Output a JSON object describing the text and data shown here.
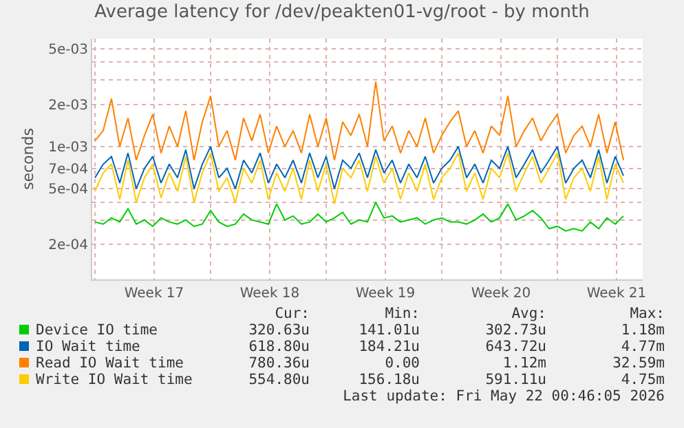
{
  "chart_data": {
    "type": "line",
    "title": "Average latency for /dev/peakten01-vg/root - by month",
    "ylabel": "seconds",
    "x": [
      "2026-04-20T00:00",
      "2026-04-20T12:00",
      "2026-04-21T00:00",
      "2026-04-21T12:00",
      "2026-04-22T00:00",
      "2026-04-22T12:00",
      "2026-04-23T00:00",
      "2026-04-23T12:00",
      "2026-04-24T00:00",
      "2026-04-24T12:00",
      "2026-04-25T00:00",
      "2026-04-25T12:00",
      "2026-04-26T00:00",
      "2026-04-26T12:00",
      "2026-04-27T00:00",
      "2026-04-27T12:00",
      "2026-04-28T00:00",
      "2026-04-28T12:00",
      "2026-04-29T00:00",
      "2026-04-29T12:00",
      "2026-04-30T00:00",
      "2026-04-30T12:00",
      "2026-05-01T00:00",
      "2026-05-01T12:00",
      "2026-05-02T00:00",
      "2026-05-02T12:00",
      "2026-05-03T00:00",
      "2026-05-03T12:00",
      "2026-05-04T00:00",
      "2026-05-04T12:00",
      "2026-05-05T00:00",
      "2026-05-05T12:00",
      "2026-05-06T00:00",
      "2026-05-06T12:00",
      "2026-05-07T00:00",
      "2026-05-07T12:00",
      "2026-05-08T00:00",
      "2026-05-08T12:00",
      "2026-05-09T00:00",
      "2026-05-09T12:00",
      "2026-05-10T00:00",
      "2026-05-10T12:00",
      "2026-05-11T00:00",
      "2026-05-11T12:00",
      "2026-05-12T00:00",
      "2026-05-12T12:00",
      "2026-05-13T00:00",
      "2026-05-13T12:00",
      "2026-05-14T00:00",
      "2026-05-14T12:00",
      "2026-05-15T00:00",
      "2026-05-15T12:00",
      "2026-05-16T00:00",
      "2026-05-16T12:00",
      "2026-05-17T00:00",
      "2026-05-17T12:00",
      "2026-05-18T00:00",
      "2026-05-18T12:00",
      "2026-05-19T00:00",
      "2026-05-19T12:00",
      "2026-05-20T00:00",
      "2026-05-20T12:00",
      "2026-05-21T00:00",
      "2026-05-21T12:00",
      "2026-05-22T00:00"
    ],
    "series": [
      {
        "name": "Device IO time",
        "color": "#00cc00",
        "values": [
          0.00029,
          0.00028,
          0.00031,
          0.00029,
          0.00036,
          0.00028,
          0.0003,
          0.00027,
          0.00031,
          0.00029,
          0.00028,
          0.0003,
          0.00027,
          0.00028,
          0.00035,
          0.00029,
          0.00027,
          0.00028,
          0.00033,
          0.0003,
          0.00029,
          0.00028,
          0.00039,
          0.0003,
          0.00032,
          0.00028,
          0.00029,
          0.00033,
          0.00029,
          0.00031,
          0.00034,
          0.00028,
          0.0003,
          0.00029,
          0.0004,
          0.00031,
          0.00032,
          0.00029,
          0.0003,
          0.00031,
          0.00028,
          0.0003,
          0.00031,
          0.00029,
          0.00029,
          0.00028,
          0.0003,
          0.00033,
          0.00029,
          0.00031,
          0.00039,
          0.0003,
          0.00032,
          0.00035,
          0.00031,
          0.00026,
          0.00027,
          0.00025,
          0.00026,
          0.00025,
          0.00029,
          0.00026,
          0.00031,
          0.00028,
          0.00032
        ]
      },
      {
        "name": "IO Wait time",
        "color": "#0066b3",
        "values": [
          0.0006,
          0.00075,
          0.00085,
          0.00055,
          0.0009,
          0.0005,
          0.0007,
          0.00085,
          0.00055,
          0.00075,
          0.0006,
          0.00095,
          0.0005,
          0.00075,
          0.001,
          0.0006,
          0.0007,
          0.0005,
          0.0008,
          0.00065,
          0.0009,
          0.00055,
          0.00075,
          0.0006,
          0.0008,
          0.00055,
          0.0009,
          0.0006,
          0.00085,
          0.0005,
          0.0008,
          0.0007,
          0.0009,
          0.0006,
          0.00095,
          0.00065,
          0.0008,
          0.00055,
          0.00075,
          0.0006,
          0.00085,
          0.00055,
          0.0007,
          0.0008,
          0.001,
          0.0006,
          0.00075,
          0.00055,
          0.0008,
          0.0007,
          0.001,
          0.0006,
          0.00075,
          0.00095,
          0.00065,
          0.0008,
          0.001,
          0.00055,
          0.0007,
          0.0008,
          0.0006,
          0.00095,
          0.00055,
          0.00085,
          0.00062
        ]
      },
      {
        "name": "Read IO Wait time",
        "color": "#ff8000",
        "values": [
          0.0011,
          0.0013,
          0.0022,
          0.001,
          0.0016,
          0.0008,
          0.0012,
          0.0017,
          0.0009,
          0.0014,
          0.001,
          0.0018,
          0.0008,
          0.0015,
          0.0023,
          0.001,
          0.0013,
          0.0008,
          0.0016,
          0.0011,
          0.0017,
          0.0009,
          0.0014,
          0.001,
          0.0013,
          0.0009,
          0.0017,
          0.001,
          0.0016,
          0.0008,
          0.0015,
          0.0012,
          0.0017,
          0.001,
          0.0029,
          0.0011,
          0.0014,
          0.0009,
          0.0013,
          0.001,
          0.0016,
          0.0009,
          0.0012,
          0.0015,
          0.0018,
          0.001,
          0.0013,
          0.0009,
          0.0014,
          0.0012,
          0.0023,
          0.001,
          0.0013,
          0.0016,
          0.0011,
          0.0014,
          0.0017,
          0.0009,
          0.0012,
          0.0014,
          0.001,
          0.0017,
          0.0009,
          0.0015,
          0.0008
        ]
      },
      {
        "name": "Write IO Wait time",
        "color": "#ffcc00",
        "values": [
          0.00048,
          0.00065,
          0.00075,
          0.00042,
          0.0008,
          0.0004,
          0.0006,
          0.00075,
          0.00043,
          0.00065,
          0.00048,
          0.00085,
          0.0004,
          0.00065,
          0.0009,
          0.00048,
          0.0006,
          0.0004,
          0.0007,
          0.00055,
          0.0008,
          0.00042,
          0.00065,
          0.00048,
          0.0007,
          0.00042,
          0.0008,
          0.00048,
          0.00075,
          0.00039,
          0.0007,
          0.0006,
          0.0008,
          0.00048,
          0.00085,
          0.00055,
          0.0007,
          0.00042,
          0.00065,
          0.00048,
          0.00075,
          0.00042,
          0.0006,
          0.0007,
          0.0009,
          0.00048,
          0.00065,
          0.00042,
          0.0007,
          0.0006,
          0.0009,
          0.00048,
          0.00065,
          0.00085,
          0.00055,
          0.0007,
          0.0009,
          0.00042,
          0.0006,
          0.0007,
          0.00048,
          0.00085,
          0.00042,
          0.00075,
          0.00055
        ]
      }
    ],
    "log": "y",
    "grid": true,
    "legend": "bottom",
    "line_style": "solid",
    "marker": "none",
    "xlim": [
      "2026-04-19T20:00",
      "2026-05-23T04:00"
    ],
    "xticks": [
      {
        "value": "2026-04-20",
        "label": null
      },
      {
        "value": "2026-04-23T14:00",
        "label": "Week 17"
      },
      {
        "value": "2026-04-27",
        "label": null
      },
      {
        "value": "2026-04-30T14:00",
        "label": "Week 18"
      },
      {
        "value": "2026-05-04",
        "label": null
      },
      {
        "value": "2026-05-07T14:00",
        "label": "Week 19"
      },
      {
        "value": "2026-05-11",
        "label": null
      },
      {
        "value": "2026-05-14T14:00",
        "label": "Week 20"
      },
      {
        "value": "2026-05-18",
        "label": null
      },
      {
        "value": "2026-05-21T14:00",
        "label": "Week 21"
      }
    ],
    "ylim": [
      0.000113,
      0.0059
    ],
    "yticks": [
      {
        "value": 0.0002,
        "label": "2e-04"
      },
      {
        "value": 0.0003,
        "label": null
      },
      {
        "value": 0.0004,
        "label": null
      },
      {
        "value": 0.0005,
        "label": "5e-04"
      },
      {
        "value": 0.0007,
        "label": "7e-04"
      },
      {
        "value": 0.001,
        "label": "1e-03"
      },
      {
        "value": 0.002,
        "label": "2e-03"
      },
      {
        "value": 0.003,
        "label": null
      },
      {
        "value": 0.004,
        "label": null
      },
      {
        "value": 0.005,
        "label": "5e-03"
      }
    ],
    "annotations": [
      "Cur:",
      "Min:",
      "Avg:",
      "Max:",
      "320.63u",
      "141.01u",
      "302.73u",
      "1.18m",
      "618.80u",
      "184.21u",
      "643.72u",
      "4.77m",
      "780.36u",
      "0.00",
      "1.12m",
      "32.59m",
      "554.80u",
      "156.18u",
      "591.11u",
      "4.75m",
      "Last update: Fri May 22 00:46:05 2026"
    ]
  }
}
